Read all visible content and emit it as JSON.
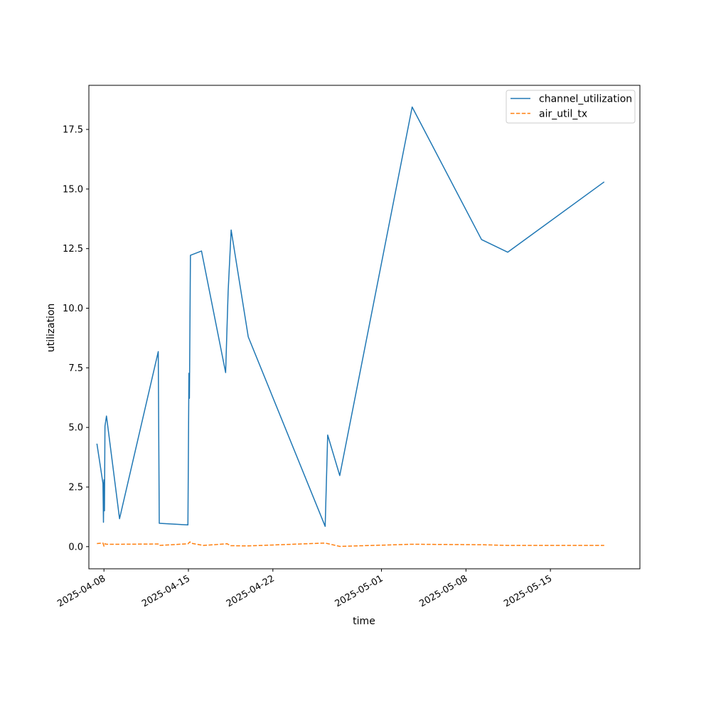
{
  "chart_data": {
    "type": "line",
    "title": "",
    "xlabel": "time",
    "ylabel": "utilization",
    "xlim": [
      "2025-04-06T18:00",
      "2025-05-22T10:00"
    ],
    "ylim": [
      -0.93,
      19.35
    ],
    "x_ticks": [
      "2025-04-08",
      "2025-04-15",
      "2025-04-22",
      "2025-05-01",
      "2025-05-08",
      "2025-05-15"
    ],
    "y_ticks": [
      "0.0",
      "2.5",
      "5.0",
      "7.5",
      "10.0",
      "12.5",
      "15.0",
      "17.5"
    ],
    "legend_position": "top-right",
    "grid": false,
    "series": [
      {
        "name": "channel_utilization",
        "color": "#1f77b4",
        "dash": "solid",
        "points": [
          [
            "2025-04-07T10:00",
            4.32
          ],
          [
            "2025-04-07T22:00",
            2.65
          ],
          [
            "2025-04-07T23:00",
            1.02
          ],
          [
            "2025-04-08T00:00",
            2.8
          ],
          [
            "2025-04-08T01:00",
            1.5
          ],
          [
            "2025-04-08T02:00",
            5.05
          ],
          [
            "2025-04-08T05:00",
            5.48
          ],
          [
            "2025-04-09T07:00",
            1.17
          ],
          [
            "2025-04-12T12:00",
            8.18
          ],
          [
            "2025-04-12T14:00",
            0.98
          ],
          [
            "2025-04-14T23:00",
            0.91
          ],
          [
            "2025-04-15T01:00",
            7.27
          ],
          [
            "2025-04-15T02:00",
            6.22
          ],
          [
            "2025-04-15T04:00",
            12.22
          ],
          [
            "2025-04-16T02:00",
            12.4
          ],
          [
            "2025-04-18T02:00",
            7.3
          ],
          [
            "2025-04-18T07:00",
            10.7
          ],
          [
            "2025-04-18T13:00",
            13.28
          ],
          [
            "2025-04-19T23:00",
            8.8
          ],
          [
            "2025-04-26T08:00",
            0.85
          ],
          [
            "2025-04-26T13:00",
            4.68
          ],
          [
            "2025-04-27T13:00",
            2.98
          ],
          [
            "2025-05-03T13:00",
            18.44
          ],
          [
            "2025-05-09T07:00",
            12.88
          ],
          [
            "2025-05-11T11:00",
            12.35
          ],
          [
            "2025-05-19T11:00",
            15.3
          ]
        ]
      },
      {
        "name": "air_util_tx",
        "color": "#ff7f0e",
        "dash": "dashed",
        "points": [
          [
            "2025-04-07T10:00",
            0.13
          ],
          [
            "2025-04-07T22:00",
            0.15
          ],
          [
            "2025-04-08T00:00",
            0.02
          ],
          [
            "2025-04-08T02:00",
            0.12
          ],
          [
            "2025-04-08T05:00",
            0.1
          ],
          [
            "2025-04-09T07:00",
            0.1
          ],
          [
            "2025-04-12T12:00",
            0.11
          ],
          [
            "2025-04-12T14:00",
            0.05
          ],
          [
            "2025-04-14T23:00",
            0.12
          ],
          [
            "2025-04-15T03:00",
            0.2
          ],
          [
            "2025-04-15T06:00",
            0.14
          ],
          [
            "2025-04-16T06:00",
            0.05
          ],
          [
            "2025-04-18T05:00",
            0.12
          ],
          [
            "2025-04-18T12:00",
            0.04
          ],
          [
            "2025-04-19T23:00",
            0.03
          ],
          [
            "2025-04-26T08:00",
            0.15
          ],
          [
            "2025-04-27T13:00",
            0.01
          ],
          [
            "2025-05-03T13:00",
            0.1
          ],
          [
            "2025-05-09T07:00",
            0.08
          ],
          [
            "2025-05-11T11:00",
            0.05
          ],
          [
            "2025-05-19T11:00",
            0.05
          ]
        ]
      }
    ]
  }
}
